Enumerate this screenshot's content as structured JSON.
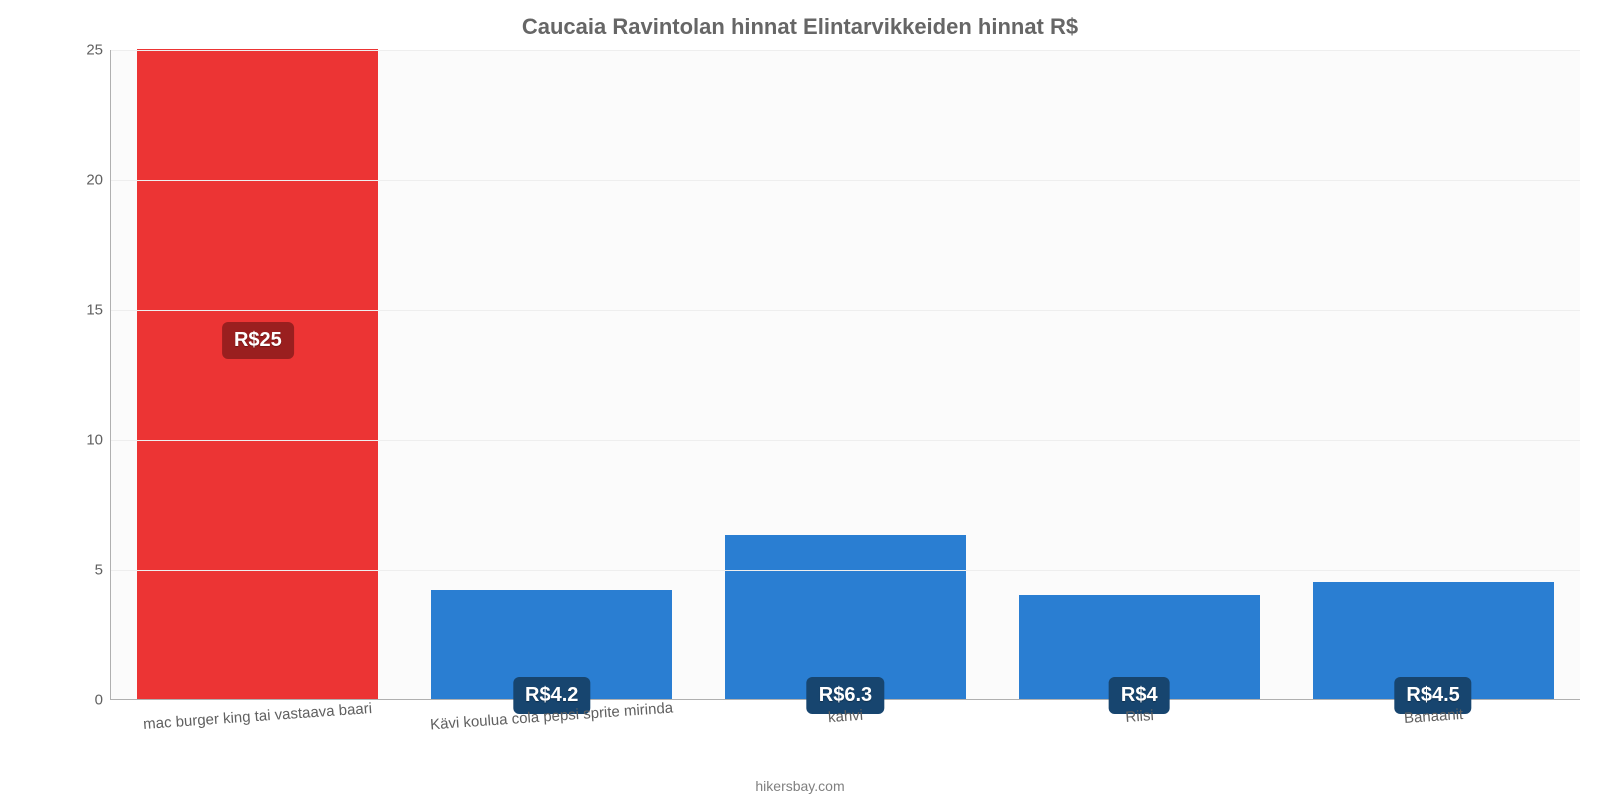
{
  "chart": {
    "type": "bar",
    "title": "Caucaia Ravintolan hinnat Elintarvikkeiden hinnat R$",
    "title_color": "#666666",
    "title_fontsize": 22,
    "background_color": "#ffffff",
    "plot_background_color": "#fbfbfb",
    "grid_color": "#eeeeee",
    "axis_color": "#b0b0b0",
    "tick_label_color": "#606060",
    "tick_fontsize": 15,
    "ylim": [
      0,
      25
    ],
    "yticks": [
      0,
      5,
      10,
      15,
      20,
      25
    ],
    "categories": [
      "mac burger king tai vastaava baari",
      "Kävi koulua cola pepsi sprite mirinda",
      "kahvi",
      "Riisi",
      "Banaanit"
    ],
    "values": [
      25,
      4.2,
      6.3,
      4,
      4.5
    ],
    "value_labels": [
      "R$25",
      "R$4.2",
      "R$6.3",
      "R$4",
      "R$4.5"
    ],
    "bar_colors": [
      "#ec3434",
      "#2a7ed2",
      "#2a7ed2",
      "#2a7ed2",
      "#2a7ed2"
    ],
    "badge_colors": [
      "#9a1f1f",
      "#17456f",
      "#17456f",
      "#17456f",
      "#17456f"
    ],
    "value_label_fontsize": 20,
    "bar_width": 0.82,
    "x_label_rotation_deg": -4,
    "credit": "hikersbay.com",
    "credit_color": "#808080"
  }
}
